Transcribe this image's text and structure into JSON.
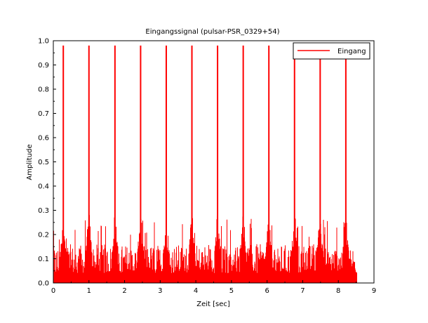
{
  "chart_data": {
    "type": "line",
    "title": "Eingangssignal (pulsar-PSR_0329+54)",
    "xlabel": "Zeit [sec]",
    "ylabel": "Amplitude",
    "xlim": [
      0,
      9
    ],
    "ylim": [
      0,
      1
    ],
    "xticks": [
      "0",
      "1",
      "2",
      "3",
      "4",
      "5",
      "6",
      "7",
      "8",
      "9"
    ],
    "yticks": [
      "0.0",
      "0.1",
      "0.2",
      "0.3",
      "0.4",
      "0.5",
      "0.6",
      "0.7",
      "0.8",
      "0.9",
      "1.0"
    ],
    "grid": false,
    "legend": {
      "position": "top-right",
      "entries": [
        "Eingang"
      ]
    },
    "series": [
      {
        "name": "Eingang",
        "color": "#ff0000",
        "x_start": 0.0,
        "x_end": 8.52,
        "noise_level": 0.1,
        "noise_max": 0.27,
        "pulses": [
          {
            "x": 0.28,
            "y": 0.98
          },
          {
            "x": 1.0,
            "y": 0.98
          },
          {
            "x": 1.73,
            "y": 0.98
          },
          {
            "x": 2.45,
            "y": 0.98
          },
          {
            "x": 3.17,
            "y": 0.98
          },
          {
            "x": 3.89,
            "y": 0.98
          },
          {
            "x": 4.61,
            "y": 0.98
          },
          {
            "x": 5.33,
            "y": 0.98
          },
          {
            "x": 6.05,
            "y": 0.98
          },
          {
            "x": 6.77,
            "y": 0.98
          },
          {
            "x": 7.49,
            "y": 0.98
          },
          {
            "x": 8.21,
            "y": 0.98
          }
        ]
      }
    ]
  }
}
